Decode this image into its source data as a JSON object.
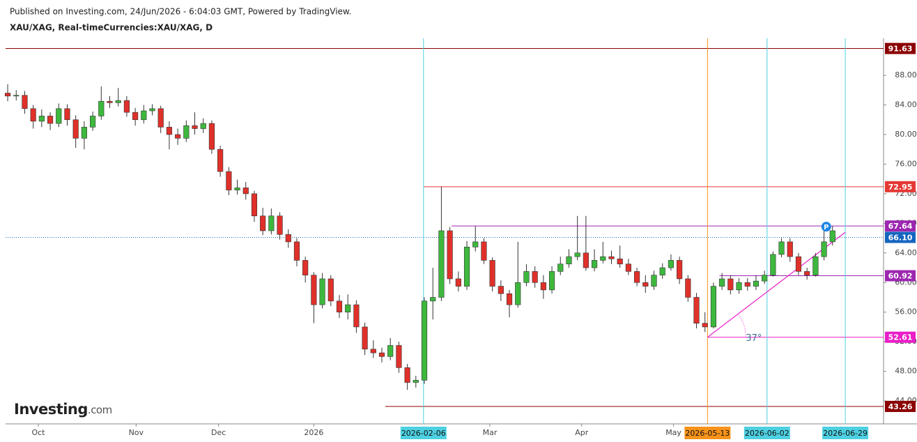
{
  "header": {
    "published": "Published on Investing.com, 24/Jun/2026 - 6:04:03 GMT, Powered by TradingView.",
    "symbol": "XAU/XAG, Real-timeCurrencies:XAU/XAG, D"
  },
  "logo": {
    "name": "Investing",
    "suffix": ".com"
  },
  "chart_data": {
    "type": "candlestick",
    "up_color": "#3db83d",
    "down_color": "#e0302a",
    "open": [
      85.6,
      85.2,
      85.3,
      83.5,
      81.8,
      82.5,
      81.5,
      83.5,
      82.0,
      79.5,
      81.0,
      82.5,
      84.5,
      84.3,
      84.6,
      83.0,
      82.0,
      83.2,
      83.5,
      81.0,
      80.0,
      79.5,
      81.2,
      80.8,
      81.5,
      78.0,
      75.0,
      72.5,
      72.8,
      72.0,
      69.0,
      67.0,
      69.0,
      66.5,
      65.5,
      63.0,
      61.0,
      57.0,
      60.5,
      57.5,
      56.0,
      57.0,
      54.0,
      51.0,
      50.5,
      50.0,
      51.5,
      48.5,
      46.5,
      46.8,
      57.5,
      58.0,
      67.0,
      60.5,
      59.5,
      64.8,
      65.5,
      63.0,
      59.5,
      58.5,
      57.0,
      60.0,
      61.5,
      60.0,
      59.0,
      61.5,
      62.5,
      63.5,
      64.0,
      62.0,
      63.0,
      63.5,
      63.2,
      62.5,
      61.5,
      60.0,
      59.5,
      61.0,
      62.0,
      63.0,
      60.5,
      58.0,
      54.5,
      54.0,
      59.5,
      60.5,
      59.0,
      60.0,
      59.5,
      60.2,
      61.0,
      63.8,
      65.5,
      63.5,
      61.5,
      61.0,
      63.5,
      65.5
    ],
    "high": [
      86.8,
      86.0,
      85.9,
      84.0,
      83.4,
      83.0,
      84.2,
      84.1,
      82.6,
      81.8,
      83.1,
      86.5,
      85.2,
      86.3,
      85.2,
      83.6,
      84.0,
      84.1,
      83.9,
      81.8,
      80.8,
      81.9,
      83.0,
      82.2,
      81.9,
      78.5,
      75.6,
      73.9,
      73.6,
      72.4,
      70.1,
      70.0,
      69.5,
      67.2,
      66.0,
      63.5,
      61.4,
      61.3,
      61.0,
      58.3,
      58.4,
      57.6,
      54.6,
      52.2,
      51.2,
      52.5,
      52.0,
      49.0,
      47.4,
      58.0,
      62.0,
      72.95,
      67.5,
      61.5,
      65.6,
      67.6,
      66.0,
      63.4,
      60.3,
      59.0,
      65.5,
      62.5,
      62.2,
      61.0,
      62.2,
      63.5,
      64.5,
      69.0,
      69.0,
      64.5,
      65.5,
      64.3,
      65.0,
      63.2,
      62.0,
      61.0,
      61.6,
      62.6,
      63.8,
      63.5,
      61.0,
      58.6,
      56.0,
      60.0,
      61.3,
      61.0,
      60.6,
      60.6,
      61.0,
      61.6,
      64.2,
      66.0,
      66.0,
      64.0,
      62.0,
      64.0,
      67.2,
      67.64
    ],
    "low": [
      84.5,
      84.6,
      82.8,
      80.8,
      81.0,
      80.6,
      81.0,
      81.2,
      78.2,
      78.0,
      80.5,
      82.0,
      83.6,
      83.8,
      82.4,
      81.2,
      81.5,
      82.6,
      80.2,
      78.0,
      78.6,
      79.0,
      80.0,
      80.2,
      77.4,
      74.3,
      71.8,
      71.9,
      71.2,
      68.2,
      66.4,
      66.5,
      65.8,
      64.7,
      62.2,
      60.0,
      54.5,
      56.5,
      56.8,
      55.2,
      55.0,
      53.2,
      50.2,
      49.8,
      49.2,
      49.5,
      47.8,
      45.5,
      45.8,
      46.3,
      55.0,
      57.5,
      59.8,
      58.8,
      59.0,
      64.2,
      62.5,
      58.8,
      57.5,
      55.3,
      56.6,
      59.5,
      59.3,
      57.8,
      58.5,
      61.0,
      62.0,
      63.0,
      61.6,
      61.5,
      62.6,
      62.5,
      62.0,
      61.0,
      59.5,
      58.6,
      59.0,
      60.5,
      61.6,
      59.8,
      57.4,
      53.8,
      53.3,
      53.8,
      59.0,
      58.4,
      58.5,
      58.9,
      59.0,
      59.8,
      60.8,
      63.4,
      62.8,
      61.0,
      60.4,
      60.8,
      63.0,
      65.0
    ],
    "close": [
      85.2,
      85.3,
      83.5,
      81.8,
      82.5,
      81.5,
      83.5,
      82.0,
      79.5,
      81.0,
      82.5,
      84.5,
      84.3,
      84.6,
      83.0,
      82.0,
      83.2,
      83.5,
      81.0,
      80.0,
      79.5,
      81.2,
      80.8,
      81.5,
      78.0,
      75.0,
      72.5,
      72.8,
      72.0,
      69.0,
      67.0,
      69.0,
      66.5,
      65.5,
      63.0,
      61.0,
      57.0,
      60.5,
      57.5,
      56.0,
      57.0,
      54.0,
      51.0,
      50.5,
      50.0,
      51.5,
      48.5,
      46.5,
      46.8,
      57.5,
      58.0,
      67.0,
      60.5,
      59.5,
      64.8,
      65.5,
      63.0,
      59.5,
      58.5,
      57.0,
      60.0,
      61.5,
      60.0,
      59.0,
      61.5,
      62.5,
      63.5,
      64.0,
      62.0,
      63.0,
      63.5,
      63.2,
      62.5,
      61.5,
      60.0,
      59.5,
      61.0,
      62.0,
      63.0,
      60.5,
      58.0,
      54.5,
      54.0,
      59.5,
      60.5,
      59.0,
      60.0,
      59.5,
      60.2,
      61.0,
      63.8,
      65.5,
      63.5,
      61.5,
      61.0,
      63.5,
      65.5,
      67.0
    ],
    "xlim": [
      -0.25,
      103
    ],
    "xticks": [
      {
        "value": 3.6,
        "label": "Oct"
      },
      {
        "value": 15.1,
        "label": "Nov"
      },
      {
        "value": 24.8,
        "label": "Dec"
      },
      {
        "value": 36,
        "label": "2026"
      },
      {
        "value": 56.7,
        "label": "Mar"
      },
      {
        "value": 67.5,
        "label": "Apr"
      },
      {
        "value": 78.3,
        "label": "May"
      }
    ],
    "ylim": [
      40.9,
      93.0
    ],
    "yticks": [
      {
        "value": 44,
        "label": "44.00"
      },
      {
        "value": 48,
        "label": "48.00"
      },
      {
        "value": 52,
        "label": "52.00"
      },
      {
        "value": 56,
        "label": "56.00"
      },
      {
        "value": 60,
        "label": "60.00"
      },
      {
        "value": 64,
        "label": "64.00"
      },
      {
        "value": 68,
        "label": "68.00"
      },
      {
        "value": 72,
        "label": "72.00"
      },
      {
        "value": 76,
        "label": "76.00"
      },
      {
        "value": 80,
        "label": "80.00"
      },
      {
        "value": 84,
        "label": "84.00"
      },
      {
        "value": 88,
        "label": "88.00"
      }
    ],
    "levels": [
      {
        "value": 91.63,
        "color": "#8b0000"
      },
      {
        "value": 72.95,
        "color": "#e53935"
      },
      {
        "value": 67.64,
        "color": "#9c27b0"
      },
      {
        "value": {
          "value": 66.1,
          "label": "66.10"
        },
        "color": "#1565c0"
      },
      {
        "value": 60.92,
        "color": "#9c27b0"
      },
      {
        "value": 52.61,
        "color": "#e91ec8"
      },
      {
        "value": 43.26,
        "color": "#8b0000"
      }
    ],
    "date_markers": [
      {
        "value": 48.9,
        "label": "2026-02-06",
        "color": "#4dd0e1"
      },
      {
        "value": 82.3,
        "label": "2026-05-13",
        "color": "#f7931a"
      },
      {
        "value": 89.3,
        "label": "2026-06-02",
        "color": "#4dd0e1"
      },
      {
        "value": 98.5,
        "label": "2026-06-29",
        "color": "#4dd0e1"
      }
    ],
    "trend_line": {
      "x": [
        82.3,
        98.5
      ],
      "y": [
        52.61,
        66.8
      ],
      "color": "#e91ec8",
      "angle_label": "37°"
    },
    "marker_label": "P"
  }
}
